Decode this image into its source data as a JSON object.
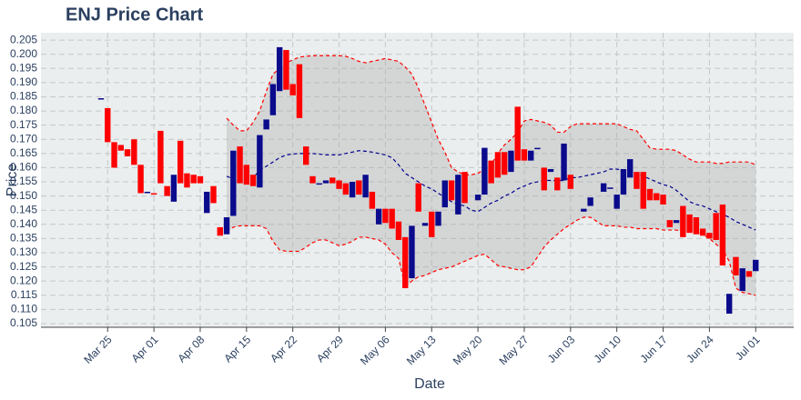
{
  "chart_data": {
    "type": "candlestick",
    "title": "ENJ Price Chart",
    "x_label": "Date",
    "y_label": "Price",
    "x": [
      "Mar 24",
      "Mar 25",
      "Mar 26",
      "Mar 27",
      "Mar 28",
      "Mar 29",
      "Mar 30",
      "Mar 31",
      "Apr 01",
      "Apr 02",
      "Apr 03",
      "Apr 04",
      "Apr 05",
      "Apr 06",
      "Apr 07",
      "Apr 08",
      "Apr 09",
      "Apr 10",
      "Apr 11",
      "Apr 12",
      "Apr 13",
      "Apr 14",
      "Apr 15",
      "Apr 16",
      "Apr 17",
      "Apr 18",
      "Apr 19",
      "Apr 20",
      "Apr 21",
      "Apr 22",
      "Apr 23",
      "Apr 24",
      "Apr 25",
      "Apr 26",
      "Apr 27",
      "Apr 28",
      "Apr 29",
      "Apr 30",
      "May 01",
      "May 02",
      "May 03",
      "May 04",
      "May 05",
      "May 06",
      "May 07",
      "May 08",
      "May 09",
      "May 10",
      "May 11",
      "May 12",
      "May 13",
      "May 14",
      "May 15",
      "May 16",
      "May 17",
      "May 18",
      "May 19",
      "May 20",
      "May 21",
      "May 22",
      "May 23",
      "May 24",
      "May 25",
      "May 26",
      "May 27",
      "May 28",
      "May 29",
      "May 30",
      "May 31",
      "Jun 01",
      "Jun 02",
      "Jun 03",
      "Jun 04",
      "Jun 05",
      "Jun 06",
      "Jun 07",
      "Jun 08",
      "Jun 09",
      "Jun 10",
      "Jun 11",
      "Jun 12",
      "Jun 13",
      "Jun 14",
      "Jun 15",
      "Jun 16",
      "Jun 17",
      "Jun 18",
      "Jun 19",
      "Jun 20",
      "Jun 21",
      "Jun 22",
      "Jun 23",
      "Jun 24",
      "Jun 25",
      "Jun 26",
      "Jun 27",
      "Jun 28",
      "Jun 29",
      "Jun 30",
      "Jul 01"
    ],
    "open": [
      0.1845,
      0.181,
      0.169,
      0.168,
      0.1665,
      0.17,
      0.161,
      0.151,
      0.151,
      0.173,
      0.1535,
      0.148,
      0.1695,
      0.158,
      0.1575,
      0.157,
      0.144,
      0.1535,
      0.139,
      0.1365,
      0.143,
      0.1675,
      0.161,
      0.1575,
      0.153,
      0.1735,
      0.1785,
      0.187,
      0.2015,
      0.1895,
      0.1965,
      0.1675,
      0.157,
      0.1545,
      0.1545,
      0.1565,
      0.1555,
      0.1545,
      0.1495,
      0.1555,
      0.1495,
      0.1515,
      0.14,
      0.1455,
      0.1455,
      0.141,
      0.1355,
      0.121,
      0.1545,
      0.1395,
      0.1445,
      0.1395,
      0.146,
      0.1555,
      0.1435,
      0.1585,
      null,
      0.1485,
      0.1505,
      0.1625,
      0.1655,
      0.1655,
      0.1585,
      0.1815,
      0.1665,
      0.1625,
      0.1665,
      0.16,
      0.1585,
      0.1565,
      0.1555,
      0.1575,
      null,
      0.1445,
      0.1465,
      null,
      0.1515,
      0.1525,
      0.1455,
      0.1505,
      0.1565,
      0.1585,
      0.1585,
      0.1525,
      0.151,
      0.1505,
      0.1415,
      0.1405,
      0.1465,
      0.1435,
      0.1425,
      0.1385,
      0.137,
      0.144,
      0.147,
      0.1085,
      0.1285,
      0.1165,
      0.1235,
      0.1235
    ],
    "close": [
      0.1845,
      0.169,
      0.16,
      0.166,
      0.164,
      0.161,
      0.151,
      0.1515,
      0.1505,
      0.1545,
      0.15,
      0.1575,
      0.1545,
      0.153,
      0.1545,
      0.1545,
      0.1515,
      0.1475,
      0.136,
      0.1425,
      0.166,
      0.1545,
      0.154,
      0.1535,
      0.1715,
      0.177,
      0.1895,
      0.2025,
      0.1875,
      0.1855,
      0.1775,
      0.161,
      0.1545,
      0.1545,
      0.1555,
      0.1545,
      0.1525,
      0.1505,
      0.155,
      0.1505,
      0.1575,
      0.1455,
      0.1455,
      0.1405,
      0.1385,
      0.1345,
      0.1175,
      0.1395,
      0.1445,
      0.1405,
      0.1355,
      0.1445,
      0.1555,
      0.1485,
      0.1575,
      0.1475,
      null,
      0.1505,
      0.167,
      0.1545,
      0.1565,
      0.1575,
      0.166,
      0.1625,
      0.1625,
      0.166,
      0.167,
      0.152,
      0.1595,
      0.152,
      0.1685,
      0.1525,
      null,
      0.1455,
      0.1495,
      null,
      0.1545,
      0.153,
      0.1505,
      0.1595,
      0.163,
      0.1525,
      0.1455,
      0.1485,
      0.1485,
      0.147,
      0.139,
      0.1415,
      0.1355,
      0.137,
      0.1365,
      0.136,
      0.135,
      0.1345,
      0.1255,
      0.1155,
      0.122,
      0.1245,
      0.1215,
      0.1275
    ],
    "increasing_color": "#0a0a8c",
    "decreasing_color": "#ff0000",
    "bands": {
      "upper": [
        null,
        null,
        null,
        null,
        null,
        null,
        null,
        null,
        null,
        null,
        null,
        null,
        null,
        null,
        null,
        null,
        null,
        null,
        null,
        0.1775,
        0.175,
        0.173,
        0.173,
        0.176,
        0.18,
        0.187,
        0.193,
        0.195,
        0.197,
        0.198,
        0.199,
        0.1993,
        0.1995,
        0.1995,
        0.1995,
        0.1995,
        0.1995,
        0.1993,
        0.1985,
        0.1975,
        0.197,
        0.1975,
        0.198,
        0.1985,
        0.198,
        0.1975,
        0.1955,
        0.193,
        0.188,
        0.182,
        0.176,
        0.17,
        0.1655,
        0.16,
        0.1585,
        0.1575,
        0.1575,
        0.158,
        0.1595,
        0.161,
        0.165,
        0.168,
        0.17,
        0.1725,
        0.1765,
        0.177,
        0.1765,
        0.176,
        0.175,
        0.1725,
        0.1725,
        0.1745,
        0.1755,
        0.1755,
        0.1755,
        0.1755,
        0.1755,
        0.1755,
        0.1755,
        0.1745,
        0.1735,
        0.173,
        0.17,
        0.167,
        0.1665,
        0.1665,
        0.1665,
        0.166,
        0.1645,
        0.163,
        0.162,
        0.162,
        0.162,
        0.1615,
        0.1615,
        0.162,
        0.162,
        0.162,
        0.162,
        0.161
      ],
      "middle": [
        null,
        null,
        null,
        null,
        null,
        null,
        null,
        null,
        null,
        null,
        null,
        null,
        null,
        null,
        null,
        null,
        null,
        null,
        null,
        0.157,
        0.156,
        0.1555,
        0.155,
        0.1565,
        0.159,
        0.1605,
        0.162,
        0.1635,
        0.1645,
        0.1648,
        0.165,
        0.165,
        0.165,
        0.1648,
        0.1645,
        0.1645,
        0.1645,
        0.165,
        0.1655,
        0.166,
        0.1658,
        0.1655,
        0.165,
        0.1645,
        0.1635,
        0.161,
        0.158,
        0.1565,
        0.155,
        0.1535,
        0.1525,
        0.151,
        0.1495,
        0.148,
        0.147,
        0.1465,
        0.145,
        0.1445,
        0.146,
        0.1475,
        0.1485,
        0.15,
        0.151,
        0.1525,
        0.1535,
        0.1545,
        0.155,
        0.1555,
        0.1555,
        0.1555,
        0.1555,
        0.1565,
        0.1565,
        0.157,
        0.1575,
        0.158,
        0.1585,
        0.1595,
        0.1595,
        0.159,
        0.1585,
        0.158,
        0.157,
        0.156,
        0.155,
        0.154,
        0.1535,
        0.152,
        0.15,
        0.148,
        0.147,
        0.1465,
        0.1455,
        0.1445,
        0.1435,
        0.1425,
        0.141,
        0.14,
        0.139,
        0.138
      ],
      "lower": [
        null,
        null,
        null,
        null,
        null,
        null,
        null,
        null,
        null,
        null,
        null,
        null,
        null,
        null,
        null,
        null,
        null,
        null,
        null,
        0.1375,
        0.139,
        0.1395,
        0.1395,
        0.1395,
        0.1395,
        0.1385,
        0.134,
        0.131,
        0.1305,
        0.1305,
        0.1305,
        0.132,
        0.1335,
        0.1345,
        0.1345,
        0.1335,
        0.1325,
        0.133,
        0.134,
        0.1355,
        0.1355,
        0.135,
        0.1345,
        0.133,
        0.13,
        0.128,
        0.118,
        0.12,
        0.1215,
        0.122,
        0.123,
        0.124,
        0.1245,
        0.125,
        0.126,
        0.127,
        0.128,
        0.129,
        0.1295,
        0.1275,
        0.1255,
        0.125,
        0.1245,
        0.124,
        0.124,
        0.125,
        0.1285,
        0.132,
        0.1345,
        0.1365,
        0.1385,
        0.14,
        0.1415,
        0.1425,
        0.1425,
        0.141,
        0.1395,
        0.1395,
        0.1395,
        0.139,
        0.139,
        0.1385,
        0.1385,
        0.1385,
        0.1385,
        0.138,
        0.138,
        0.138,
        0.1375,
        0.1375,
        0.1375,
        0.1365,
        0.135,
        0.133,
        0.131,
        0.127,
        0.1175,
        0.116,
        0.1155,
        0.115
      ],
      "line_color": "#ff0000",
      "middle_color": "#00008b",
      "fill_color": "#aaaaaa"
    },
    "ylim": [
      0.1037,
      0.2076
    ],
    "yticks": [
      0.105,
      {
        "value": 0.11,
        "label": "0.110"
      },
      0.115,
      {
        "value": 0.12,
        "label": "0.120"
      },
      0.125,
      {
        "value": 0.13,
        "label": "0.130"
      },
      0.135,
      {
        "value": 0.14,
        "label": "0.140"
      },
      0.145,
      {
        "value": 0.15,
        "label": "0.150"
      },
      0.155,
      {
        "value": 0.16,
        "label": "0.160"
      },
      0.165,
      {
        "value": 0.17,
        "label": "0.170"
      },
      0.175,
      {
        "value": 0.18,
        "label": "0.180"
      },
      0.185,
      {
        "value": 0.19,
        "label": "0.190"
      },
      0.195,
      {
        "value": 0.2,
        "label": "0.200"
      },
      0.205
    ],
    "xticks": [
      "Mar 25",
      "Apr 01",
      "Apr 08",
      "Apr 15",
      "Apr 22",
      "Apr 29",
      "May 06",
      "May 13",
      "May 20",
      "May 27",
      "Jun 03",
      "Jun 10",
      "Jun 17",
      "Jun 24",
      "Jul 01"
    ],
    "grid": true
  }
}
